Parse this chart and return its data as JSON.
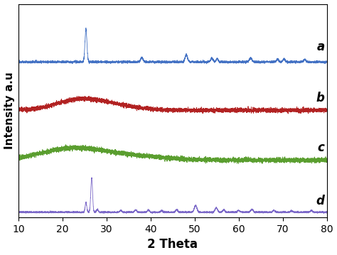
{
  "title": "",
  "xlabel": "2 Theta",
  "ylabel": "Intensity a.u",
  "xlim": [
    10,
    80
  ],
  "x_ticks": [
    10,
    20,
    30,
    40,
    50,
    60,
    70,
    80
  ],
  "colors": {
    "a": "#4472C4",
    "b": "#B22222",
    "c": "#5A9E2F",
    "d": "#7B68C8"
  },
  "labels": [
    "a",
    "b",
    "c",
    "d"
  ],
  "offsets": [
    3.0,
    2.0,
    1.0,
    0.0
  ],
  "background_color": "#ffffff",
  "linewidth": 0.6
}
